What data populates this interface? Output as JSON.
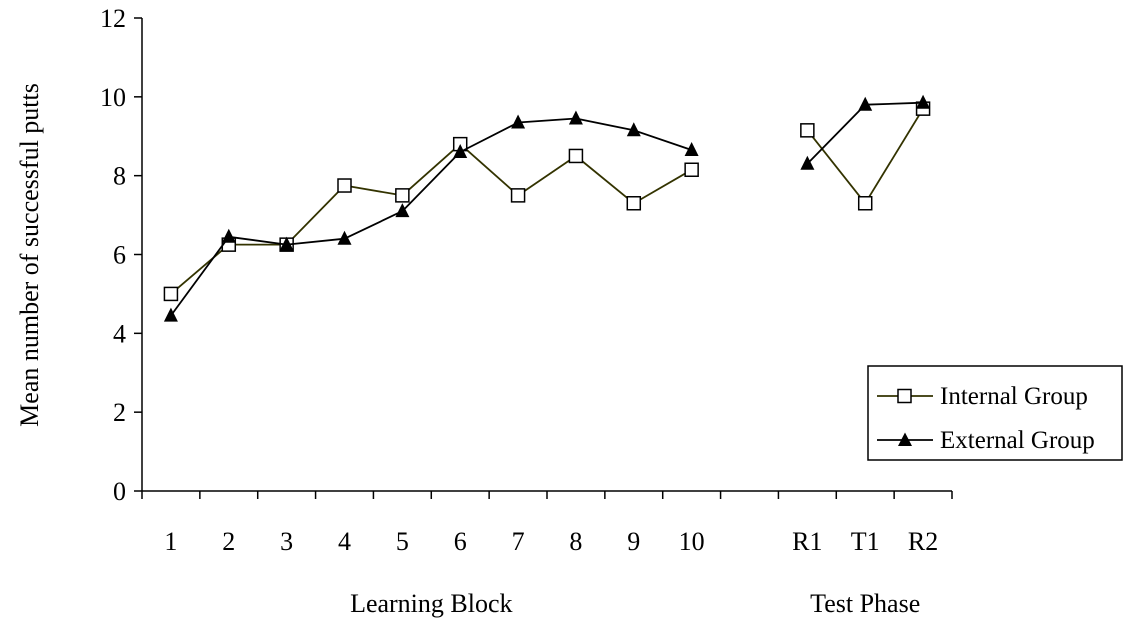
{
  "chart_data": {
    "type": "line",
    "title": "",
    "ylabel": "Mean number of successful putts",
    "ylim": [
      0,
      12
    ],
    "yticks": [
      "0",
      "2",
      "4",
      "6",
      "8",
      "10",
      "12"
    ],
    "grid": false,
    "legend_position": "bottom-right",
    "groups": [
      {
        "label": "Learning Block",
        "categories": [
          "1",
          "2",
          "3",
          "4",
          "5",
          "6",
          "7",
          "8",
          "9",
          "10"
        ]
      },
      {
        "label": "Test Phase",
        "categories": [
          "R1",
          "T1",
          "R2"
        ]
      }
    ],
    "series": [
      {
        "name": "Internal Group",
        "marker": "open-square",
        "line_color": "#333300",
        "segments": [
          [
            5.0,
            6.25,
            6.25,
            7.75,
            7.5,
            8.8,
            7.5,
            8.5,
            7.3,
            8.15
          ],
          [
            9.15,
            7.3,
            9.7
          ]
        ]
      },
      {
        "name": "External Group",
        "marker": "filled-triangle",
        "line_color": "#000000",
        "segments": [
          [
            4.45,
            6.45,
            6.25,
            6.4,
            7.1,
            8.6,
            9.35,
            9.45,
            9.15,
            8.65
          ],
          [
            8.3,
            9.8,
            9.85
          ]
        ]
      }
    ]
  }
}
